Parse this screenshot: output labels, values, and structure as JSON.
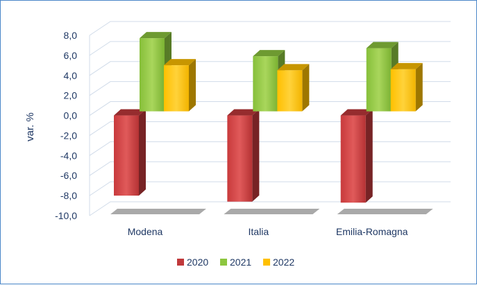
{
  "chart_data": {
    "type": "bar",
    "title": "",
    "xlabel": "",
    "ylabel": "var. %",
    "ylim": [
      -10,
      8
    ],
    "yticks": [
      "8,0",
      "6,0",
      "4,0",
      "2,0",
      "0,0",
      "-2,0",
      "-4,0",
      "-6,0",
      "-8,0",
      "-10,0"
    ],
    "categories": [
      "Modena",
      "Italia",
      "Emilia-Romagna"
    ],
    "series": [
      {
        "name": "2020",
        "values": [
          -8.0,
          -8.6,
          -8.7
        ],
        "color": "#c0393b"
      },
      {
        "name": "2021",
        "values": [
          7.3,
          5.5,
          6.3
        ],
        "color": "#8dc63f"
      },
      {
        "name": "2022",
        "values": [
          4.6,
          4.1,
          4.2
        ],
        "color": "#ffc000"
      }
    ],
    "grid": true,
    "legend_position": "bottom",
    "style": "3d-clustered-columns"
  }
}
